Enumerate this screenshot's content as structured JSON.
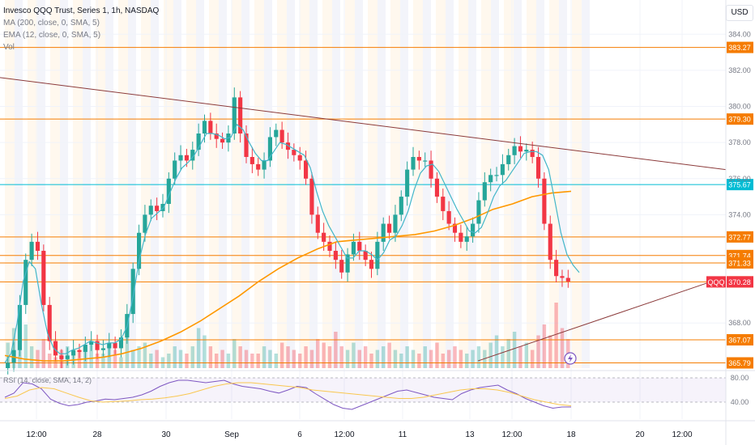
{
  "header": {
    "symbol_line": "Invesco QQQ Trust, Series 1, 1h, NASDAQ",
    "indicators": [
      "MA (200, close, 0, SMA, 5)",
      "EMA (12, close, 0, SMA, 5)",
      "Vol"
    ],
    "currency_button": "USD",
    "rsi_label": "RSI (14, close, SMA, 14, 2)"
  },
  "price_axis": {
    "ticks": [
      "384.00",
      "382.00",
      "380.00",
      "378.00",
      "376.00",
      "374.00",
      "368.00"
    ],
    "rsi_ticks": [
      "80.00",
      "40.00"
    ]
  },
  "horizontal_levels": [
    {
      "value": 383.27,
      "label": "383.27",
      "color": "#f57c00"
    },
    {
      "value": 379.3,
      "label": "379.30",
      "color": "#f57c00"
    },
    {
      "value": 375.67,
      "label": "375.67",
      "color": "#00bcd4"
    },
    {
      "value": 372.77,
      "label": "372.77",
      "color": "#f57c00"
    },
    {
      "value": 371.74,
      "label": "371.74",
      "color": "#f57c00"
    },
    {
      "value": 371.33,
      "label": "371.33",
      "color": "#f57c00"
    },
    {
      "value": 370.28,
      "label": "370.28",
      "color": "#f57c00"
    },
    {
      "value": 367.07,
      "label": "367.07",
      "color": "#f57c00"
    },
    {
      "value": 365.79,
      "label": "365.79",
      "color": "#f57c00"
    }
  ],
  "last_price": {
    "symbol": "QQQ",
    "value": "370.28",
    "color": "#f23645"
  },
  "time_axis": {
    "labels": [
      "12:00",
      "28",
      "30",
      "Sep",
      "6",
      "12:00",
      "11",
      "13",
      "12:00",
      "18",
      "20",
      "12:00"
    ]
  },
  "colors": {
    "up": "#26a69a",
    "down": "#f23645",
    "ma200": "#ff9800",
    "ema12": "#42b6c9",
    "trendline": "#8b3a3a",
    "rsi": "#7e57c2",
    "rsi_ma": "#f9c74f"
  },
  "chart_data": {
    "type": "candlestick",
    "y_range": [
      365.5,
      385.0
    ],
    "price_path": [
      365.8,
      366.5,
      369.0,
      371.5,
      372.5,
      372.0,
      369.0,
      367.0,
      366.2,
      366.0,
      366.2,
      366.5,
      366.4,
      366.8,
      367.0,
      366.5,
      366.6,
      366.9,
      366.6,
      367.2,
      368.5,
      371.0,
      373.0,
      374.0,
      374.5,
      374.2,
      374.6,
      376.0,
      377.0,
      377.3,
      377.0,
      377.6,
      378.5,
      379.2,
      378.5,
      378.2,
      378.0,
      378.5,
      380.5,
      378.5,
      377.2,
      376.8,
      376.5,
      377.0,
      378.3,
      378.7,
      378.0,
      377.6,
      377.3,
      377.0,
      376.0,
      374.0,
      373.0,
      372.5,
      372.0,
      371.5,
      370.8,
      371.8,
      372.5,
      372.0,
      371.5,
      371.0,
      372.5,
      373.5,
      373.0,
      374.0,
      375.0,
      376.5,
      377.2,
      377.0,
      377.0,
      376.0,
      375.0,
      374.2,
      373.5,
      373.0,
      372.5,
      372.8,
      373.5,
      374.8,
      375.8,
      376.2,
      376.2,
      376.8,
      377.3,
      377.8,
      377.5,
      377.6,
      377.2,
      376.0,
      373.5,
      371.5,
      370.6,
      370.5,
      370.3
    ],
    "ma200_path": [
      366.2,
      366.0,
      365.9,
      365.9,
      366.0,
      366.1,
      366.3,
      366.6,
      367.0,
      367.5,
      368.1,
      368.8,
      369.5,
      370.3,
      371.0,
      371.6,
      372.1,
      372.5,
      372.6,
      372.7,
      372.8,
      372.9,
      373.1,
      373.4,
      373.8,
      374.3,
      374.6,
      375.0,
      375.2,
      375.3
    ],
    "ema12_path": [
      365.8,
      366.3,
      368.0,
      370.3,
      371.4,
      371.0,
      369.0,
      367.4,
      366.6,
      366.3,
      366.3,
      366.5,
      366.6,
      366.8,
      367.0,
      366.9,
      366.8,
      366.9,
      366.9,
      367.1,
      367.8,
      369.5,
      371.5,
      372.9,
      373.8,
      374.1,
      374.4,
      375.2,
      376.0,
      376.6,
      376.9,
      377.3,
      377.9,
      378.5,
      378.5,
      378.4,
      378.2,
      378.3,
      379.0,
      378.7,
      378.0,
      377.4,
      377.0,
      377.0,
      377.5,
      378.0,
      377.9,
      377.7,
      377.5,
      377.3,
      376.6,
      375.3,
      374.2,
      373.4,
      372.8,
      372.2,
      371.6,
      371.6,
      372.0,
      372.0,
      371.8,
      371.5,
      371.9,
      372.6,
      372.8,
      373.4,
      374.2,
      375.4,
      376.3,
      376.7,
      376.8,
      376.4,
      375.7,
      375.0,
      374.3,
      373.7,
      373.1,
      373.0,
      373.3,
      374.1,
      375.0,
      375.6,
      375.9,
      376.4,
      376.9,
      377.4,
      377.5,
      377.5,
      377.3,
      376.5,
      374.8,
      373.0,
      371.8,
      371.2,
      370.8
    ],
    "trendlines": [
      {
        "from": {
          "price": 381.6
        },
        "to": {
          "price": 376.5
        },
        "description": "descending resistance"
      },
      {
        "from": {
          "price": 365.9
        },
        "to": {
          "price": 370.4
        },
        "description": "ascending support"
      }
    ],
    "rsi": {
      "levels": [
        80,
        40
      ],
      "path": [
        48,
        55,
        72,
        70,
        62,
        45,
        38,
        34,
        36,
        40,
        42,
        45,
        44,
        46,
        48,
        52,
        58,
        66,
        72,
        76,
        76,
        74,
        72,
        74,
        76,
        70,
        66,
        64,
        62,
        58,
        55,
        60,
        66,
        64,
        54,
        45,
        36,
        30,
        28,
        34,
        40,
        46,
        52,
        58,
        60,
        56,
        52,
        48,
        46,
        44,
        54,
        60,
        64,
        66,
        68,
        60,
        54,
        46,
        40,
        34,
        30,
        32,
        32
      ],
      "ma_path": [
        46,
        50,
        60,
        64,
        62,
        55,
        48,
        42,
        40,
        41,
        42,
        44,
        45,
        47,
        50,
        54,
        60,
        66,
        70,
        72,
        72,
        70,
        68,
        66,
        64,
        60,
        58,
        56,
        54,
        52,
        50,
        48,
        46,
        46,
        48,
        52,
        56,
        60,
        62,
        62,
        60,
        56,
        50,
        44,
        40,
        36,
        34
      ]
    },
    "volume_path": [
      0.35,
      0.55,
      0.45,
      0.6,
      0.3,
      0.25,
      0.4,
      0.2,
      0.15,
      0.25,
      0.3,
      0.2,
      0.25,
      0.3,
      0.35,
      0.2,
      0.2,
      0.3,
      0.25,
      0.15,
      0.45,
      0.25,
      0.3,
      0.35,
      0.2,
      0.25,
      0.15,
      0.2,
      0.3,
      0.25,
      0.2,
      0.3,
      0.55,
      0.45,
      0.3,
      0.2,
      0.25,
      0.2,
      0.4,
      0.3,
      0.25,
      0.2,
      0.2,
      0.3,
      0.25,
      0.2,
      0.35,
      0.3,
      0.25,
      0.2,
      0.3,
      0.25,
      0.4,
      0.35,
      0.3,
      0.5,
      0.3,
      0.25,
      0.35,
      0.25,
      0.3,
      0.2,
      0.25,
      0.3,
      0.35,
      0.25,
      0.2,
      0.3,
      0.25,
      0.2,
      0.3,
      0.25,
      0.35,
      0.2,
      0.25,
      0.3,
      0.25,
      0.2,
      0.25,
      0.3,
      0.25,
      0.35,
      0.45,
      0.3,
      0.4,
      0.5,
      0.3,
      0.35,
      0.25,
      0.45,
      0.6,
      0.45,
      0.9,
      0.55,
      0.4
    ]
  }
}
